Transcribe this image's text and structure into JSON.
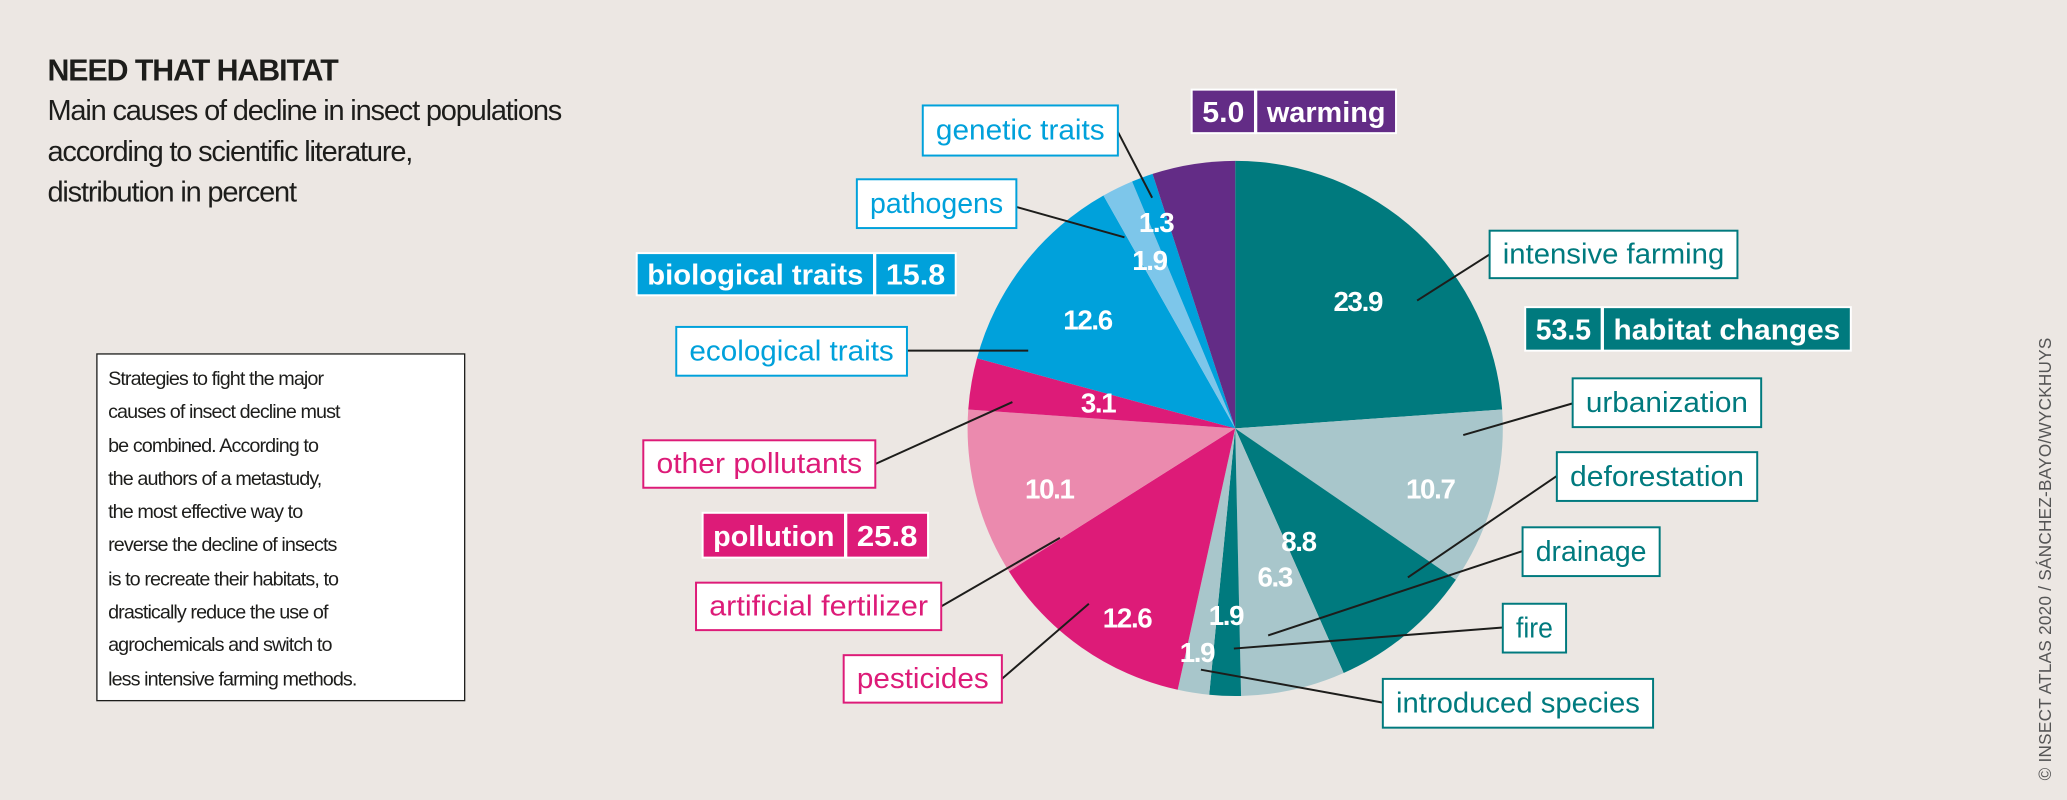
{
  "title": "NEED THAT HABITAT",
  "subtitle": [
    "Main causes of decline in insect populations",
    "according to scientific literature,",
    "distribution in percent"
  ],
  "note": [
    "Strategies to fight the major",
    "causes of insect decline must",
    "be combined. According to",
    "the authors of a metastudy,",
    "the most effective way to",
    "reverse the decline of insects",
    "is to recreate their habitats, to",
    "drastically reduce the use of",
    "agrochemicals and switch to",
    "less intensive farming methods."
  ],
  "credit": "© INSECT ATLAS 2020 / SÁNCHEZ-BAYO/WYCKHUYS",
  "chart_data": {
    "type": "pie",
    "start": "12 o'clock, clockwise",
    "unit": "percent",
    "slices": [
      {
        "label": "intensive farming",
        "value": 23.9,
        "value_label": "23.9",
        "group": "habitat changes",
        "color": "#007a7e"
      },
      {
        "label": "urbanization",
        "value": 10.7,
        "value_label": "10.7",
        "group": "habitat changes",
        "color": "#a8c6cb"
      },
      {
        "label": "deforestation",
        "value": 8.8,
        "value_label": "8.8",
        "group": "habitat changes",
        "color": "#007a7e"
      },
      {
        "label": "drainage",
        "value": 6.3,
        "value_label": "6.3",
        "group": "habitat changes",
        "color": "#a8c6cb"
      },
      {
        "label": "fire",
        "value": 1.9,
        "value_label": "1.9",
        "group": "habitat changes",
        "color": "#007a7e"
      },
      {
        "label": "introduced species",
        "value": 1.9,
        "value_label": "1.9",
        "group": "habitat changes",
        "color": "#a8c6cb"
      },
      {
        "label": "pesticides",
        "value": 12.6,
        "value_label": "12.6",
        "group": "pollution",
        "color": "#dd1b78"
      },
      {
        "label": "artificial fertilizer",
        "value": 10.1,
        "value_label": "10.1",
        "group": "pollution",
        "color": "#eb8aae"
      },
      {
        "label": "other pollutants",
        "value": 3.1,
        "value_label": "3.1",
        "group": "pollution",
        "color": "#dd1b78"
      },
      {
        "label": "ecological traits",
        "value": 12.6,
        "value_label": "12.6",
        "group": "biological traits",
        "color": "#00a1db"
      },
      {
        "label": "pathogens",
        "value": 1.9,
        "value_label": "1.9",
        "group": "biological traits",
        "color": "#7dc6ea"
      },
      {
        "label": "genetic traits",
        "value": 1.3,
        "value_label": "1.3",
        "group": "biological traits",
        "color": "#00a1db"
      },
      {
        "label": "warming",
        "value": 5.0,
        "value_label": "",
        "group": "warming",
        "color": "#632c86"
      }
    ],
    "groups": [
      {
        "name": "habitat changes",
        "total": "53.5",
        "color": "#007a7e"
      },
      {
        "name": "pollution",
        "total": "25.8",
        "color": "#dd1b78"
      },
      {
        "name": "biological traits",
        "total": "15.8",
        "color": "#00a1db"
      },
      {
        "name": "warming",
        "total": "5.0",
        "color": "#632c86"
      }
    ]
  }
}
